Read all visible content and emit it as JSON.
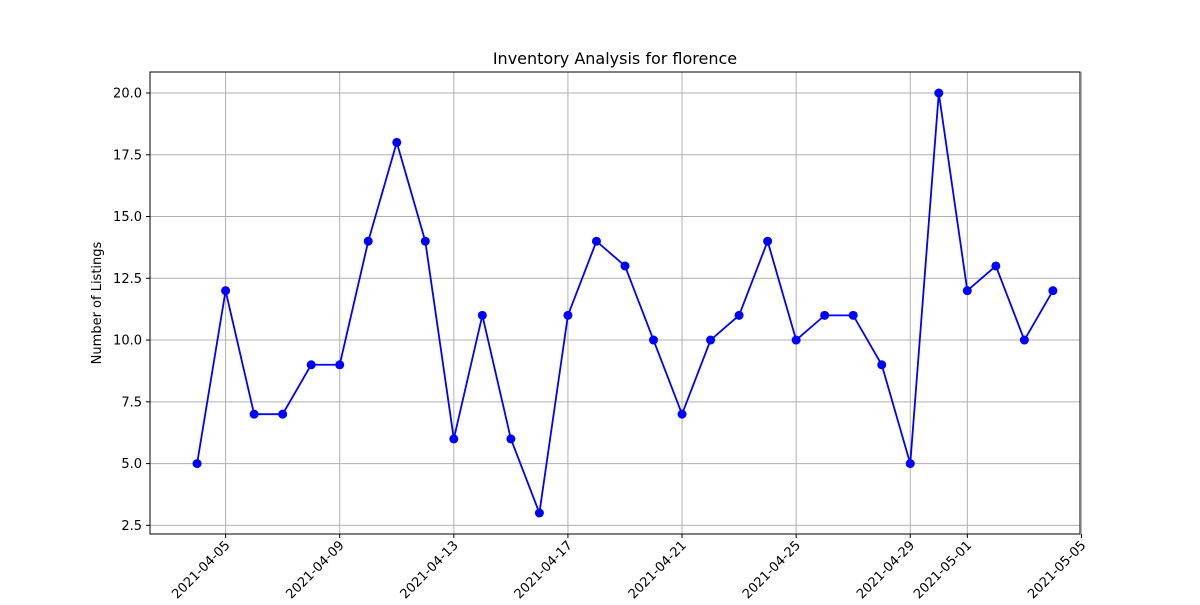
{
  "chart_data": {
    "type": "line",
    "title": "Inventory Analysis for florence",
    "xlabel": "",
    "ylabel": "Number of Listings",
    "x_tick_labels": [
      "2021-04-05",
      "2021-04-09",
      "2021-04-13",
      "2021-04-17",
      "2021-04-21",
      "2021-04-25",
      "2021-04-29",
      "2021-05-01",
      "2021-05-05"
    ],
    "y_tick_labels": [
      "2.5",
      "5.0",
      "7.5",
      "10.0",
      "12.5",
      "15.0",
      "17.5",
      "20.0"
    ],
    "xlim": [
      "2021-04-02",
      "2021-05-05"
    ],
    "ylim": [
      2.15,
      20.85
    ],
    "grid": true,
    "series": [
      {
        "color": "#0000ff",
        "marker": "circle",
        "x": [
          "2021-04-04",
          "2021-04-05",
          "2021-04-06",
          "2021-04-07",
          "2021-04-08",
          "2021-04-09",
          "2021-04-10",
          "2021-04-11",
          "2021-04-12",
          "2021-04-13",
          "2021-04-14",
          "2021-04-15",
          "2021-04-16",
          "2021-04-17",
          "2021-04-18",
          "2021-04-19",
          "2021-04-20",
          "2021-04-21",
          "2021-04-22",
          "2021-04-23",
          "2021-04-24",
          "2021-04-25",
          "2021-04-26",
          "2021-04-27",
          "2021-04-28",
          "2021-04-29",
          "2021-04-30",
          "2021-05-01",
          "2021-05-02",
          "2021-05-03",
          "2021-05-04"
        ],
        "values": [
          5,
          12,
          7,
          7,
          9,
          9,
          14,
          18,
          14,
          6,
          11,
          6,
          3,
          11,
          14,
          13,
          10,
          7,
          10,
          11,
          14,
          10,
          11,
          11,
          9,
          5,
          20,
          12,
          13,
          10,
          12
        ]
      }
    ]
  }
}
